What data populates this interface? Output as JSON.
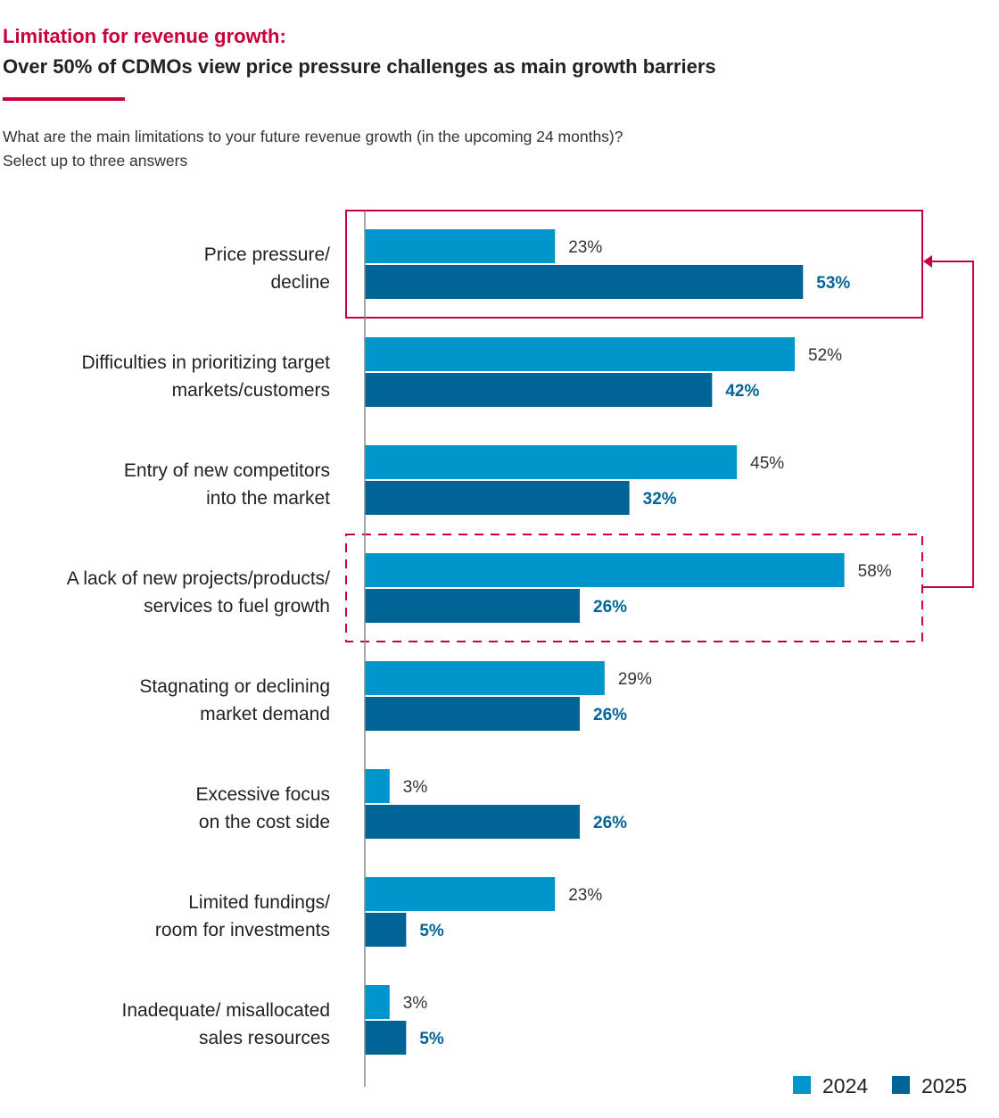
{
  "header": {
    "kicker": "Limitation for revenue growth:",
    "title": "Over 50% of CDMOs view price pressure challenges as main growth barriers",
    "question_line1": "What are the main limitations to your future revenue growth (in the upcoming 24 months)?",
    "question_line2": "Select up to three answers"
  },
  "colors": {
    "accent": "#c8003c",
    "series_2024": "#0096cc",
    "series_2025": "#006596",
    "label_2025": "#006596"
  },
  "chart_data": {
    "type": "bar",
    "orientation": "horizontal",
    "title": "Over 50% of CDMOs view price pressure challenges as main growth barriers",
    "xlabel": "",
    "ylabel": "",
    "xlim": [
      0,
      60
    ],
    "grid": false,
    "legend_position": "bottom-right",
    "categories": [
      [
        "Price pressure/",
        "decline"
      ],
      [
        "Difficulties in prioritizing target",
        "markets/customers"
      ],
      [
        "Entry of new competitors",
        "into the market"
      ],
      [
        "A lack of new projects/products/",
        "services to fuel growth"
      ],
      [
        "Stagnating or declining",
        "market demand"
      ],
      [
        "Excessive focus",
        "on the cost side"
      ],
      [
        "Limited fundings/",
        "room for investments"
      ],
      [
        "Inadequate/ misallocated",
        "sales resources"
      ]
    ],
    "series": [
      {
        "name": "2024",
        "values": [
          23,
          52,
          45,
          58,
          29,
          3,
          23,
          3
        ]
      },
      {
        "name": "2025",
        "values": [
          53,
          42,
          32,
          26,
          26,
          26,
          5,
          5
        ]
      }
    ],
    "value_suffix": "%",
    "annotations": [
      {
        "type": "highlight-box",
        "style": "solid",
        "category_index": 0
      },
      {
        "type": "highlight-box",
        "style": "dashed",
        "category_index": 3
      },
      {
        "type": "arrow",
        "from_category_index": 3,
        "to_category_index": 0
      }
    ]
  }
}
